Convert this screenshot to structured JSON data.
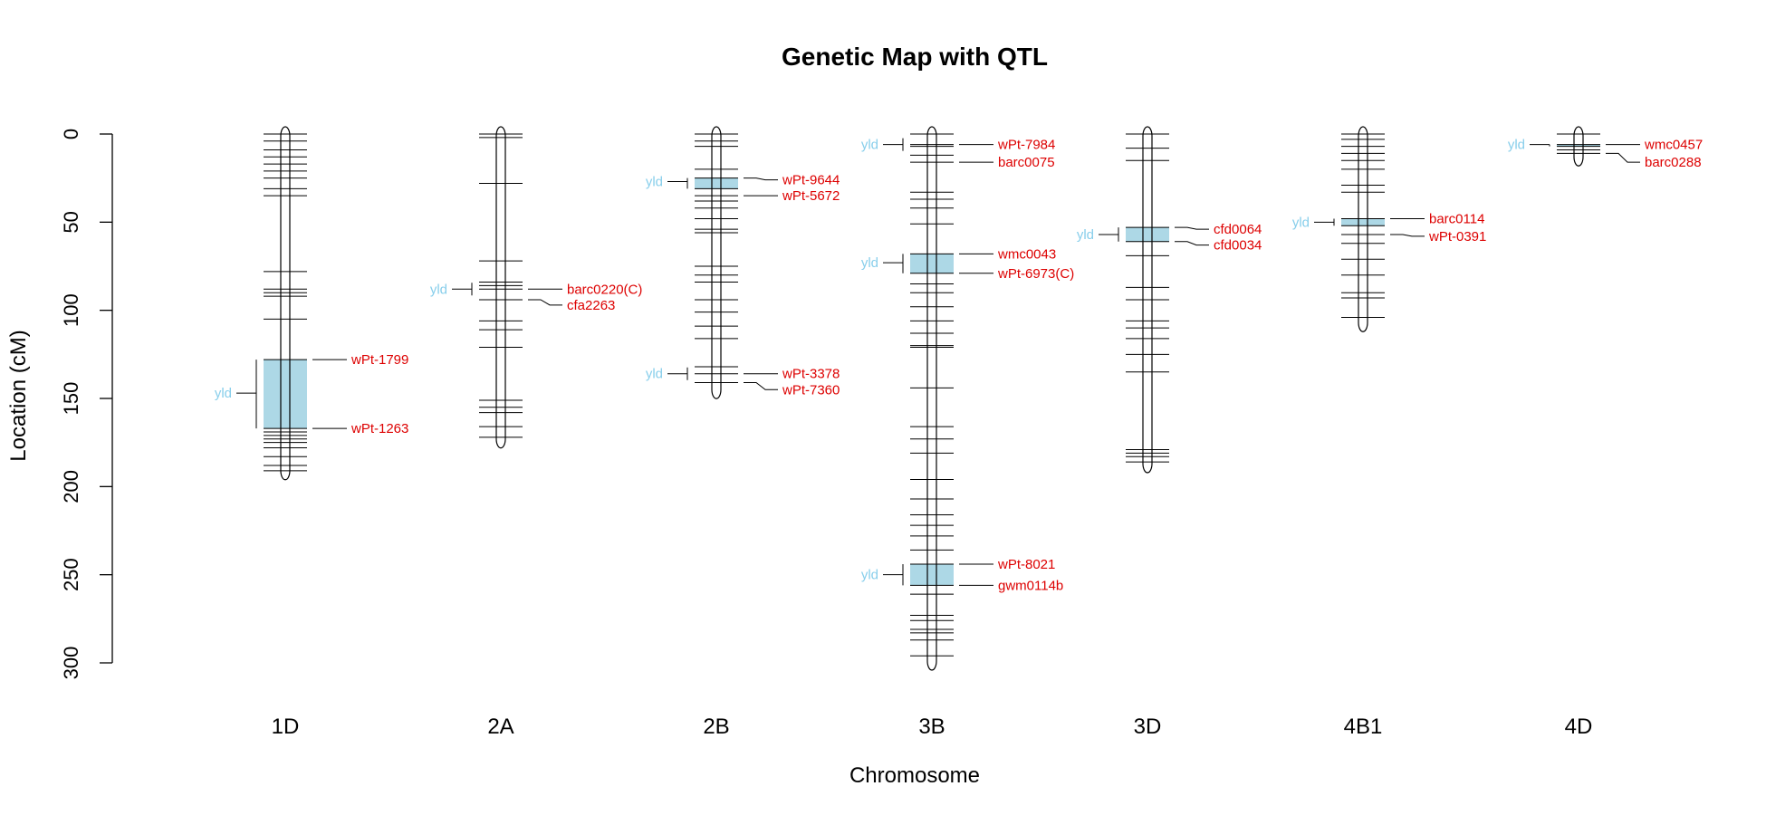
{
  "chart_data": {
    "type": "genetic-map",
    "title": "Genetic Map with QTL",
    "xlabel": "Chromosome",
    "ylabel": "Location (cM)",
    "ylim": [
      0,
      300
    ],
    "yticks": [
      "0",
      "50",
      "100",
      "150",
      "200",
      "250",
      "300"
    ],
    "colors": {
      "qtl_fill": "#add8e6",
      "qtl_label": "#87ceeb",
      "marker_label": "#dd0000",
      "line": "#000000"
    },
    "chromosomes": [
      {
        "name": "1D",
        "length": 192,
        "markers": [
          0,
          4,
          9,
          13,
          17,
          21,
          25,
          31,
          35,
          78,
          88,
          90,
          92,
          105,
          128,
          167,
          169,
          171,
          173,
          175,
          178,
          183,
          188,
          191
        ],
        "qtls": [
          {
            "label": "yld",
            "start": 128,
            "end": 167,
            "peak": 147
          }
        ],
        "labeled_markers": [
          {
            "name": "wPt-1799",
            "pos": 128
          },
          {
            "name": "wPt-1263",
            "pos": 167
          }
        ]
      },
      {
        "name": "2A",
        "length": 174,
        "markers": [
          0,
          2,
          28,
          72,
          84,
          86,
          88,
          94,
          106,
          111,
          121,
          151,
          155,
          158,
          166,
          172
        ],
        "qtls": [
          {
            "label": "yld",
            "start": 88,
            "end": 88,
            "peak": 88
          }
        ],
        "labeled_markers": [
          {
            "name": "barc0220(C)",
            "pos": 88
          },
          {
            "name": "cfa2263",
            "pos": 97
          }
        ]
      },
      {
        "name": "2B",
        "length": 146,
        "markers": [
          0,
          4,
          7,
          20,
          25,
          31,
          35,
          38,
          42,
          48,
          54,
          56,
          75,
          80,
          84,
          94,
          101,
          109,
          116,
          132,
          136,
          141
        ],
        "qtls": [
          {
            "label": "yld",
            "start": 25,
            "end": 31,
            "peak": 27
          },
          {
            "label": "yld",
            "start": 136,
            "end": 136,
            "peak": 136
          }
        ],
        "labeled_markers": [
          {
            "name": "wPt-9644",
            "pos": 26
          },
          {
            "name": "wPt-5672",
            "pos": 35
          },
          {
            "name": "wPt-3378",
            "pos": 136
          },
          {
            "name": "wPt-7360",
            "pos": 145
          }
        ]
      },
      {
        "name": "3B",
        "length": 300,
        "markers": [
          0,
          6,
          7,
          12,
          16,
          33,
          37,
          42,
          51,
          68,
          79,
          85,
          90,
          98,
          106,
          113,
          120,
          121,
          144,
          166,
          173,
          181,
          196,
          207,
          216,
          222,
          228,
          236,
          244,
          256,
          261,
          273,
          276,
          281,
          283,
          287,
          296
        ],
        "qtls": [
          {
            "label": "yld",
            "start": 6,
            "end": 6,
            "peak": 6
          },
          {
            "label": "yld",
            "start": 68,
            "end": 79,
            "peak": 73
          },
          {
            "label": "yld",
            "start": 244,
            "end": 256,
            "peak": 250
          }
        ],
        "labeled_markers": [
          {
            "name": "wPt-7984",
            "pos": 6
          },
          {
            "name": "barc0075",
            "pos": 16
          },
          {
            "name": "wmc0043",
            "pos": 68
          },
          {
            "name": "wPt-6973(C)",
            "pos": 79
          },
          {
            "name": "wPt-8021",
            "pos": 244
          },
          {
            "name": "gwm0114b",
            "pos": 256
          }
        ]
      },
      {
        "name": "3D",
        "length": 188,
        "markers": [
          0,
          8,
          15,
          53,
          61,
          69,
          87,
          94,
          106,
          110,
          116,
          125,
          135,
          179,
          181,
          183,
          186
        ],
        "qtls": [
          {
            "label": "yld",
            "start": 53,
            "end": 61,
            "peak": 57
          }
        ],
        "labeled_markers": [
          {
            "name": "cfd0064",
            "pos": 54
          },
          {
            "name": "cfd0034",
            "pos": 63
          }
        ]
      },
      {
        "name": "4B1",
        "length": 108,
        "markers": [
          0,
          3,
          7,
          11,
          15,
          20,
          29,
          33,
          48,
          52,
          57,
          62,
          71,
          80,
          90,
          93,
          104
        ],
        "qtls": [
          {
            "label": "yld",
            "start": 48,
            "end": 52,
            "peak": 50
          }
        ],
        "labeled_markers": [
          {
            "name": "barc0114",
            "pos": 48
          },
          {
            "name": "wPt-0391",
            "pos": 58
          }
        ]
      },
      {
        "name": "4D",
        "length": 14,
        "markers": [
          0,
          6,
          7,
          9,
          11
        ],
        "qtls": [
          {
            "label": "yld",
            "start": 6,
            "end": 7,
            "peak": 6
          }
        ],
        "labeled_markers": [
          {
            "name": "wmc0457",
            "pos": 6
          },
          {
            "name": "barc0288",
            "pos": 16
          }
        ]
      }
    ]
  }
}
